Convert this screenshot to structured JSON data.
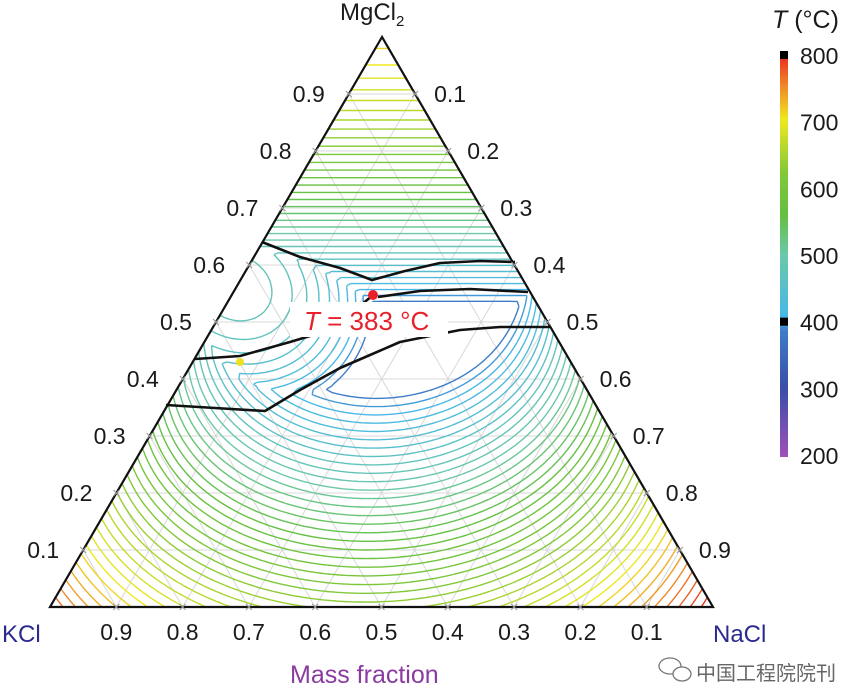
{
  "chart_data": {
    "type": "heatmap",
    "subtype": "ternary-contour",
    "corners": {
      "top": "MgCl",
      "top_sub": "2",
      "left": "KCl",
      "right": "NaCl"
    },
    "axis_title": "Mass fraction",
    "left_axis_ticks": [
      "0.1",
      "0.2",
      "0.3",
      "0.4",
      "0.5",
      "0.6",
      "0.7",
      "0.8",
      "0.9"
    ],
    "right_axis_ticks": [
      "0.1",
      "0.2",
      "0.3",
      "0.4",
      "0.5",
      "0.6",
      "0.7",
      "0.8",
      "0.9"
    ],
    "bottom_axis_ticks": [
      "0.9",
      "0.8",
      "0.7",
      "0.6",
      "0.5",
      "0.4",
      "0.3",
      "0.2",
      "0.1"
    ],
    "contour_interval": 10,
    "pure_melting_points": {
      "NaCl": 801,
      "KCl": 771,
      "MgCl2": 714
    },
    "annotation": {
      "italic": "T",
      "text": " = 383 °C",
      "value": 383,
      "composition": {
        "KCl": 0.2,
        "NaCl": 0.25,
        "MgCl2": 0.55
      },
      "color": "#e8202a"
    },
    "marker_secondary": {
      "composition": {
        "KCl": 0.55,
        "NaCl": 0.05,
        "MgCl2": 0.4
      },
      "color": "#f0e020"
    },
    "colorbar": {
      "title_italic": "T",
      "title": " (°C)",
      "ticks": [
        "800",
        "700",
        "600",
        "500",
        "400",
        "300",
        "200"
      ],
      "range": [
        200,
        800
      ],
      "marked_values": [
        400,
        800
      ],
      "stops": [
        {
          "v": 200,
          "c": "#a050b8"
        },
        {
          "v": 300,
          "c": "#3a4ea8"
        },
        {
          "v": 390,
          "c": "#3e7cc8"
        },
        {
          "v": 410,
          "c": "#48b8e8"
        },
        {
          "v": 500,
          "c": "#6cc8a8"
        },
        {
          "v": 560,
          "c": "#64c040"
        },
        {
          "v": 620,
          "c": "#80c838"
        },
        {
          "v": 700,
          "c": "#f0e820"
        },
        {
          "v": 750,
          "c": "#f08828"
        },
        {
          "v": 800,
          "c": "#e82020"
        }
      ]
    }
  },
  "watermark": "中国工程院院刊"
}
